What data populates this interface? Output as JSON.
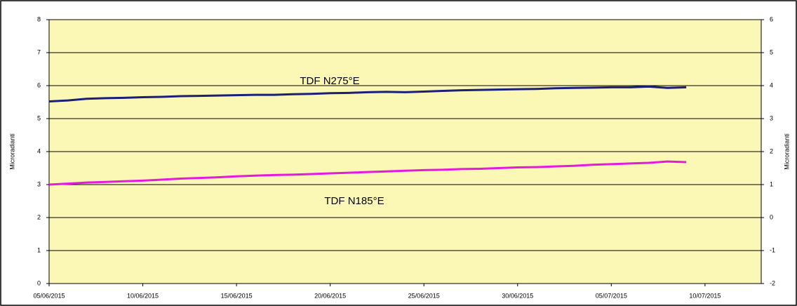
{
  "chart_data": {
    "type": "line",
    "y_label": "Microradianti",
    "y2_label": "Microradianti",
    "annotations": [
      "TDF N275°E",
      "TDF N185°E"
    ],
    "x": [
      "2015-06-05",
      "2015-06-06",
      "2015-06-07",
      "2015-06-08",
      "2015-06-09",
      "2015-06-10",
      "2015-06-11",
      "2015-06-12",
      "2015-06-13",
      "2015-06-14",
      "2015-06-15",
      "2015-06-16",
      "2015-06-17",
      "2015-06-18",
      "2015-06-19",
      "2015-06-20",
      "2015-06-21",
      "2015-06-22",
      "2015-06-23",
      "2015-06-24",
      "2015-06-25",
      "2015-06-26",
      "2015-06-27",
      "2015-06-28",
      "2015-06-29",
      "2015-06-30",
      "2015-07-01",
      "2015-07-02",
      "2015-07-03",
      "2015-07-04",
      "2015-07-05",
      "2015-07-06",
      "2015-07-07",
      "2015-07-08",
      "2015-07-09"
    ],
    "series": [
      {
        "name": "TDF N275°E",
        "color": "#1a1f7a",
        "values": [
          5.52,
          5.55,
          5.6,
          5.62,
          5.63,
          5.65,
          5.66,
          5.68,
          5.69,
          5.7,
          5.71,
          5.72,
          5.72,
          5.74,
          5.75,
          5.77,
          5.78,
          5.8,
          5.81,
          5.8,
          5.82,
          5.84,
          5.86,
          5.87,
          5.88,
          5.89,
          5.9,
          5.92,
          5.93,
          5.94,
          5.95,
          5.95,
          5.97,
          5.93,
          5.95
        ]
      },
      {
        "name": "TDF N185°E",
        "color": "#e619e0",
        "values": [
          3.0,
          3.03,
          3.06,
          3.08,
          3.1,
          3.12,
          3.15,
          3.18,
          3.2,
          3.22,
          3.25,
          3.27,
          3.29,
          3.3,
          3.32,
          3.34,
          3.36,
          3.38,
          3.4,
          3.42,
          3.44,
          3.45,
          3.47,
          3.48,
          3.5,
          3.52,
          3.53,
          3.55,
          3.57,
          3.6,
          3.62,
          3.64,
          3.66,
          3.7,
          3.68
        ]
      }
    ],
    "xlim": [
      "2015-06-05",
      "2015-07-13"
    ],
    "xticks": [
      {
        "value": "2015-06-05",
        "label": "05/06/2015"
      },
      {
        "value": "2015-06-10",
        "label": "10/06/2015"
      },
      {
        "value": "2015-06-15",
        "label": "15/06/2015"
      },
      {
        "value": "2015-06-20",
        "label": "20/06/2015"
      },
      {
        "value": "2015-06-25",
        "label": "25/06/2015"
      },
      {
        "value": "2015-06-30",
        "label": "30/06/2015"
      },
      {
        "value": "2015-07-05",
        "label": "05/07/2015"
      },
      {
        "value": "2015-07-10",
        "label": "10/07/2015"
      }
    ],
    "ylim": [
      0,
      8
    ],
    "yticks": [
      0,
      1,
      2,
      3,
      4,
      5,
      6,
      7,
      8
    ],
    "y2lim": [
      -2,
      6
    ],
    "y2ticks": [
      -2,
      -1,
      0,
      1,
      2,
      3,
      4,
      5,
      6
    ],
    "grid": true,
    "background": "#fbf7b5"
  }
}
